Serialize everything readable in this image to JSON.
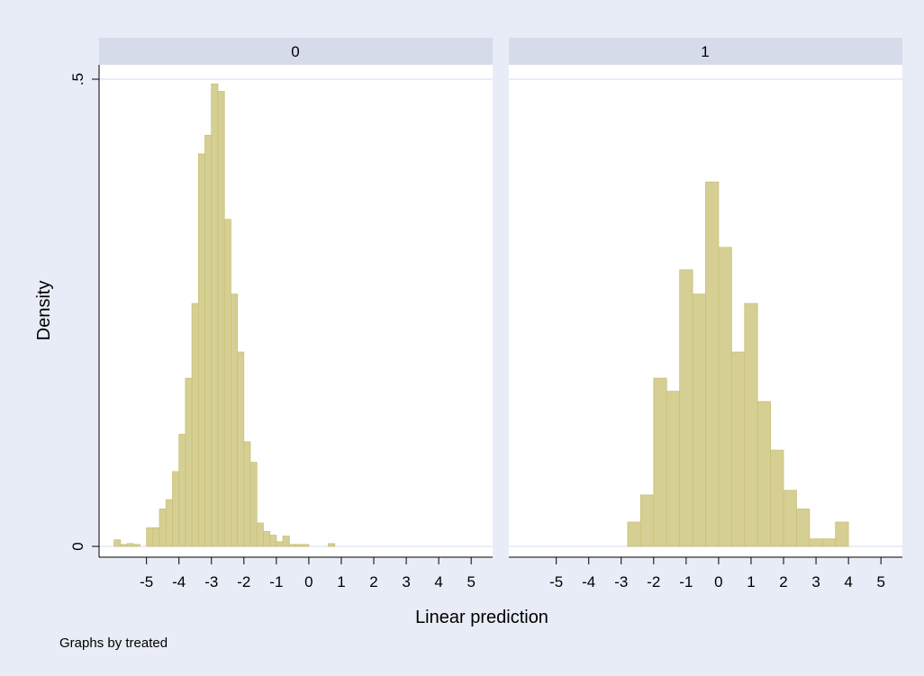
{
  "chart_data": [
    {
      "type": "bar",
      "panel": "0",
      "bin_width": 0.2,
      "bins": [
        {
          "x0": -6.0,
          "density": 0.007
        },
        {
          "x0": -5.8,
          "density": 0.002
        },
        {
          "x0": -5.6,
          "density": 0.003
        },
        {
          "x0": -5.4,
          "density": 0.002
        },
        {
          "x0": -5.0,
          "density": 0.02
        },
        {
          "x0": -4.8,
          "density": 0.02
        },
        {
          "x0": -4.6,
          "density": 0.04
        },
        {
          "x0": -4.4,
          "density": 0.05
        },
        {
          "x0": -4.2,
          "density": 0.08
        },
        {
          "x0": -4.0,
          "density": 0.12
        },
        {
          "x0": -3.8,
          "density": 0.18
        },
        {
          "x0": -3.6,
          "density": 0.26
        },
        {
          "x0": -3.4,
          "density": 0.42
        },
        {
          "x0": -3.2,
          "density": 0.44
        },
        {
          "x0": -3.0,
          "density": 0.495
        },
        {
          "x0": -2.8,
          "density": 0.487
        },
        {
          "x0": -2.6,
          "density": 0.35
        },
        {
          "x0": -2.4,
          "density": 0.27
        },
        {
          "x0": -2.2,
          "density": 0.208
        },
        {
          "x0": -2.0,
          "density": 0.112
        },
        {
          "x0": -1.8,
          "density": 0.09
        },
        {
          "x0": -1.6,
          "density": 0.025
        },
        {
          "x0": -1.4,
          "density": 0.016
        },
        {
          "x0": -1.2,
          "density": 0.012
        },
        {
          "x0": -1.0,
          "density": 0.005
        },
        {
          "x0": -0.8,
          "density": 0.011
        },
        {
          "x0": -0.6,
          "density": 0.002
        },
        {
          "x0": -0.4,
          "density": 0.002
        },
        {
          "x0": -0.2,
          "density": 0.002
        },
        {
          "x0": 0.6,
          "density": 0.003
        }
      ],
      "xticks": [
        "-5",
        "-4",
        "-3",
        "-2",
        "-1",
        "0",
        "1",
        "2",
        "3",
        "4",
        "5"
      ]
    },
    {
      "type": "bar",
      "panel": "1",
      "bin_width": 0.4,
      "bins": [
        {
          "x0": -2.8,
          "density": 0.026
        },
        {
          "x0": -2.4,
          "density": 0.055
        },
        {
          "x0": -2.0,
          "density": 0.18
        },
        {
          "x0": -1.6,
          "density": 0.166
        },
        {
          "x0": -1.2,
          "density": 0.296
        },
        {
          "x0": -0.8,
          "density": 0.27
        },
        {
          "x0": -0.4,
          "density": 0.39
        },
        {
          "x0": 0.0,
          "density": 0.32
        },
        {
          "x0": 0.4,
          "density": 0.208
        },
        {
          "x0": 0.8,
          "density": 0.26
        },
        {
          "x0": 1.2,
          "density": 0.155
        },
        {
          "x0": 1.6,
          "density": 0.103
        },
        {
          "x0": 2.0,
          "density": 0.06
        },
        {
          "x0": 2.4,
          "density": 0.04
        },
        {
          "x0": 2.8,
          "density": 0.008
        },
        {
          "x0": 3.2,
          "density": 0.008
        },
        {
          "x0": 3.6,
          "density": 0.026
        }
      ],
      "xticks": [
        "-5",
        "-4",
        "-3",
        "-2",
        "-1",
        "0",
        "1",
        "2",
        "3",
        "4",
        "5"
      ]
    }
  ],
  "ylabel": "Density",
  "xlabel": "Linear prediction",
  "note": "Graphs by treated",
  "yticks": [
    {
      "value": 0,
      "label": "0"
    },
    {
      "value": 0.5,
      "label": ".5"
    }
  ],
  "xlim": [
    -6.1,
    5.3
  ],
  "ylim": [
    0,
    0.5
  ],
  "colors": {
    "bar_fill": "#d5cf93",
    "bar_edge": "#c9c077",
    "panel_header": "#d6dbe9",
    "gridline": "#dde2ef",
    "plot_bg": "#ffffff",
    "outer_bg": "#e8ecf6"
  }
}
